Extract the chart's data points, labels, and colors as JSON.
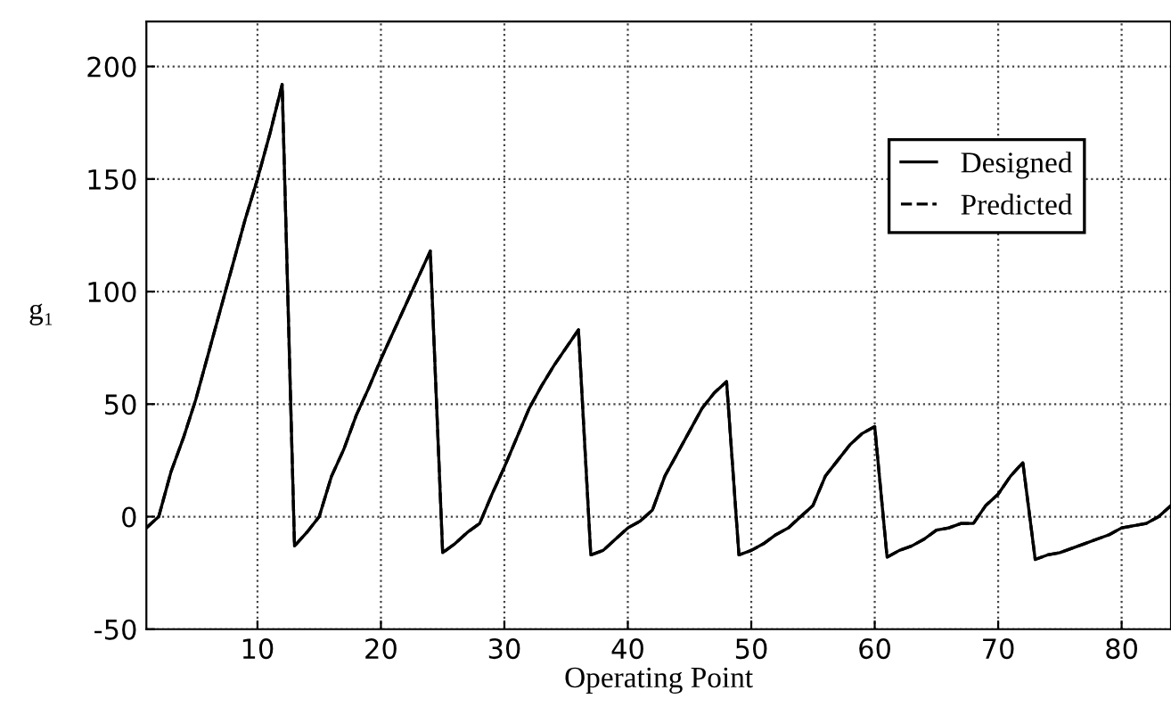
{
  "chart_data": {
    "type": "line",
    "xlabel": "Operating Point",
    "ylabel": "g₁",
    "x": [
      1,
      2,
      3,
      4,
      5,
      6,
      7,
      8,
      9,
      10,
      11,
      12,
      13,
      14,
      15,
      16,
      17,
      18,
      19,
      20,
      21,
      22,
      23,
      24,
      25,
      26,
      27,
      28,
      29,
      30,
      31,
      32,
      33,
      34,
      35,
      36,
      37,
      38,
      39,
      40,
      41,
      42,
      43,
      44,
      45,
      46,
      47,
      48,
      49,
      50,
      51,
      52,
      53,
      54,
      55,
      56,
      57,
      58,
      59,
      60,
      61,
      62,
      63,
      64,
      65,
      66,
      67,
      68,
      69,
      70,
      71,
      72,
      73,
      74,
      75,
      76,
      77,
      78,
      79,
      80,
      81,
      82,
      83,
      84
    ],
    "series": [
      {
        "name": "Designed",
        "color": "#000000",
        "line_style": "solid",
        "values": [
          -5,
          0,
          20,
          35,
          52,
          72,
          92,
          112,
          132,
          150,
          170,
          192,
          -13,
          -7,
          0,
          18,
          30,
          45,
          57,
          70,
          82,
          94,
          106,
          118,
          -16,
          -12,
          -7,
          -3,
          10,
          22,
          35,
          48,
          58,
          67,
          75,
          83,
          -17,
          -15,
          -10,
          -5,
          -2,
          3,
          18,
          28,
          38,
          48,
          55,
          60,
          -17,
          -15,
          -12,
          -8,
          -5,
          0,
          5,
          18,
          25,
          32,
          37,
          40,
          -18,
          -15,
          -13,
          -10,
          -6,
          -5,
          -3,
          -3,
          5,
          10,
          18,
          24,
          -19,
          -17,
          -16,
          -14,
          -12,
          -10,
          -8,
          -5,
          -4,
          -3,
          0,
          5
        ]
      },
      {
        "name": "Predicted",
        "color": "#000000",
        "line_style": "dashed",
        "values": [
          -5,
          0,
          20,
          35,
          52,
          72,
          92,
          112,
          132,
          150,
          170,
          192,
          -13,
          -7,
          0,
          18,
          30,
          45,
          57,
          70,
          82,
          94,
          106,
          118,
          -16,
          -12,
          -7,
          -3,
          10,
          22,
          35,
          48,
          58,
          67,
          75,
          83,
          -17,
          -15,
          -10,
          -5,
          -2,
          3,
          18,
          28,
          38,
          48,
          55,
          60,
          -17,
          -15,
          -12,
          -8,
          -5,
          0,
          5,
          18,
          25,
          32,
          37,
          40,
          -18,
          -15,
          -13,
          -10,
          -6,
          -5,
          -3,
          -3,
          5,
          10,
          18,
          24,
          -19,
          -17,
          -16,
          -14,
          -12,
          -10,
          -8,
          -5,
          -4,
          -3,
          0,
          5
        ]
      }
    ],
    "xlim": [
      1,
      84
    ],
    "xticks": [
      10,
      20,
      30,
      40,
      50,
      60,
      70,
      80
    ],
    "ylim": [
      -50,
      220
    ],
    "yticks": [
      -50,
      0,
      50,
      100,
      150,
      200
    ],
    "grid": true,
    "legend": "top right",
    "marker": "none"
  }
}
